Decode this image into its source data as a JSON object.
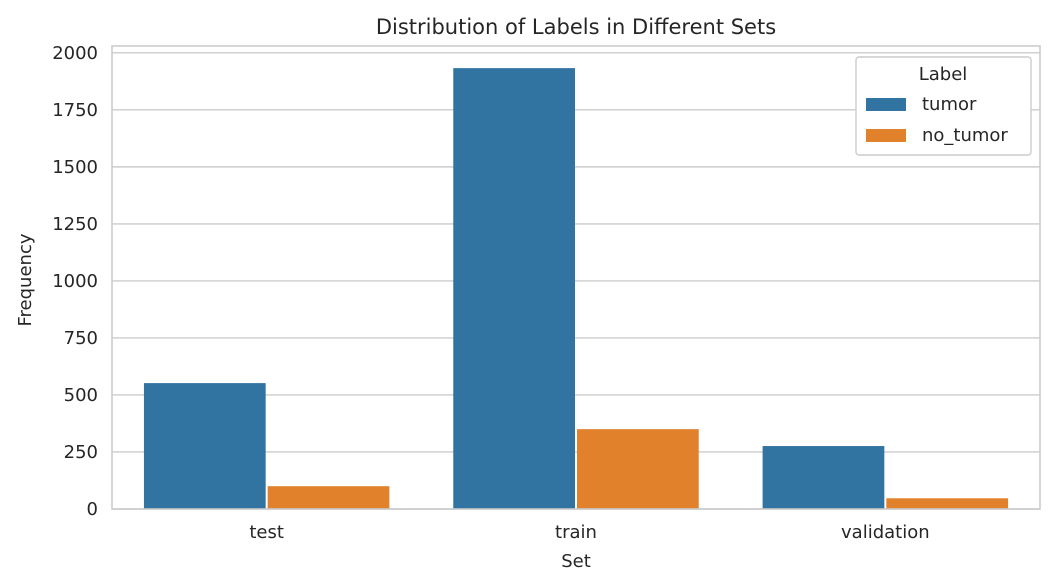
{
  "chart_data": {
    "type": "bar",
    "title": "Distribution of Labels in Different Sets",
    "xlabel": "Set",
    "ylabel": "Frequency",
    "categories": [
      "test",
      "train",
      "validation"
    ],
    "ylim": [
      0,
      2030
    ],
    "yticks": [
      0,
      250,
      500,
      750,
      1000,
      1250,
      1500,
      1750,
      2000
    ],
    "grid": true,
    "legend": {
      "title": "Label",
      "position": "top-right"
    },
    "series": [
      {
        "name": "tumor",
        "color": "#3274a1",
        "values": [
          552,
          1933,
          276
        ]
      },
      {
        "name": "no_tumor",
        "color": "#e1812c",
        "values": [
          100,
          350,
          47
        ]
      }
    ]
  }
}
